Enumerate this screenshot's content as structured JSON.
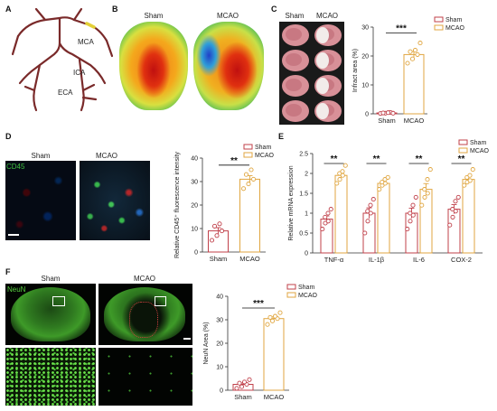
{
  "colors": {
    "sham": "#c0404a",
    "mcao": "#e0a640",
    "axis": "#333333",
    "neun_green": "#58d040",
    "cd45_green": "#40c040"
  },
  "panels": {
    "A": {
      "label": "A",
      "vessels": [
        "MCA",
        "ICA",
        "ECA"
      ]
    },
    "B": {
      "label": "B",
      "groups": [
        "Sham",
        "MCAO"
      ]
    },
    "C": {
      "label": "C",
      "groups": [
        "Sham",
        "MCAO"
      ],
      "significance": "***"
    },
    "D": {
      "label": "D",
      "stain": "CD45",
      "groups": [
        "Sham",
        "MCAO"
      ],
      "significance": "**"
    },
    "E": {
      "label": "E",
      "significance": [
        "**",
        "**",
        "**",
        "**"
      ]
    },
    "F": {
      "label": "F",
      "stain": "NeuN",
      "groups": [
        "Sham",
        "MCAO"
      ],
      "significance": "***"
    }
  },
  "chart_data": [
    {
      "id": "C",
      "type": "bar",
      "categories": [
        "Sham",
        "MCAO"
      ],
      "values": [
        0.3,
        20.5
      ],
      "points": [
        [
          0.1,
          0.2,
          0.5,
          0.3,
          0.4,
          0.2
        ],
        [
          17.5,
          19,
          20.5,
          21.5,
          22,
          24.5
        ]
      ],
      "ylabel": "Infract area (%)",
      "ylim": [
        0,
        30
      ],
      "yticks": [
        0,
        10,
        20,
        30
      ],
      "legend": [
        "Sham",
        "MCAO"
      ],
      "legend_position": "top-right"
    },
    {
      "id": "D",
      "type": "bar",
      "categories": [
        "Sham",
        "MCAO"
      ],
      "values": [
        9,
        31
      ],
      "points": [
        [
          5,
          7,
          9,
          11,
          12
        ],
        [
          27,
          29,
          31,
          33,
          35
        ]
      ],
      "ylabel": "Relative CD45⁺ fluorescence intensity",
      "ylim": [
        0,
        40
      ],
      "yticks": [
        0,
        10,
        20,
        30,
        40
      ],
      "legend": [
        "Sham",
        "MCAO"
      ],
      "legend_position": "top-right"
    },
    {
      "id": "E",
      "type": "bar",
      "categories": [
        "TNF-α",
        "IL-1β",
        "IL-6",
        "COX-2"
      ],
      "series": [
        {
          "name": "Sham",
          "values": [
            0.85,
            1.0,
            1.0,
            1.1
          ],
          "points": [
            [
              0.6,
              0.75,
              0.8,
              0.9,
              1.0,
              1.1
            ],
            [
              0.5,
              0.8,
              1.0,
              1.05,
              1.2,
              1.35
            ],
            [
              0.6,
              0.8,
              0.95,
              1.0,
              1.2,
              1.4
            ],
            [
              0.7,
              0.9,
              1.05,
              1.1,
              1.3,
              1.4
            ]
          ]
        },
        {
          "name": "MCAO",
          "values": [
            1.95,
            1.75,
            1.6,
            1.85
          ],
          "points": [
            [
              1.75,
              1.85,
              1.95,
              2.0,
              2.05,
              2.2
            ],
            [
              1.6,
              1.7,
              1.75,
              1.78,
              1.85,
              1.9
            ],
            [
              1.2,
              1.4,
              1.5,
              1.6,
              1.85,
              2.1
            ],
            [
              1.7,
              1.78,
              1.82,
              1.9,
              1.95,
              2.1
            ]
          ]
        }
      ],
      "ylabel": "Relative mRNA expression",
      "ylim": [
        0,
        2.5
      ],
      "yticks": [
        0,
        0.5,
        1.0,
        1.5,
        2.0,
        2.5
      ],
      "legend": [
        "Sham",
        "MCAO"
      ],
      "legend_position": "top-right"
    },
    {
      "id": "F",
      "type": "bar",
      "categories": [
        "Sham",
        "MCAO"
      ],
      "values": [
        2.5,
        30.5
      ],
      "points": [
        [
          0.8,
          1.5,
          2.5,
          3,
          3.5,
          4.5
        ],
        [
          28,
          29.5,
          30.5,
          31,
          31.5,
          33
        ]
      ],
      "ylabel": "NeuN Area (%)",
      "ylim": [
        0,
        40
      ],
      "yticks": [
        0,
        10,
        20,
        30,
        40
      ],
      "legend": [
        "Sham",
        "MCAO"
      ],
      "legend_position": "top-right"
    }
  ]
}
